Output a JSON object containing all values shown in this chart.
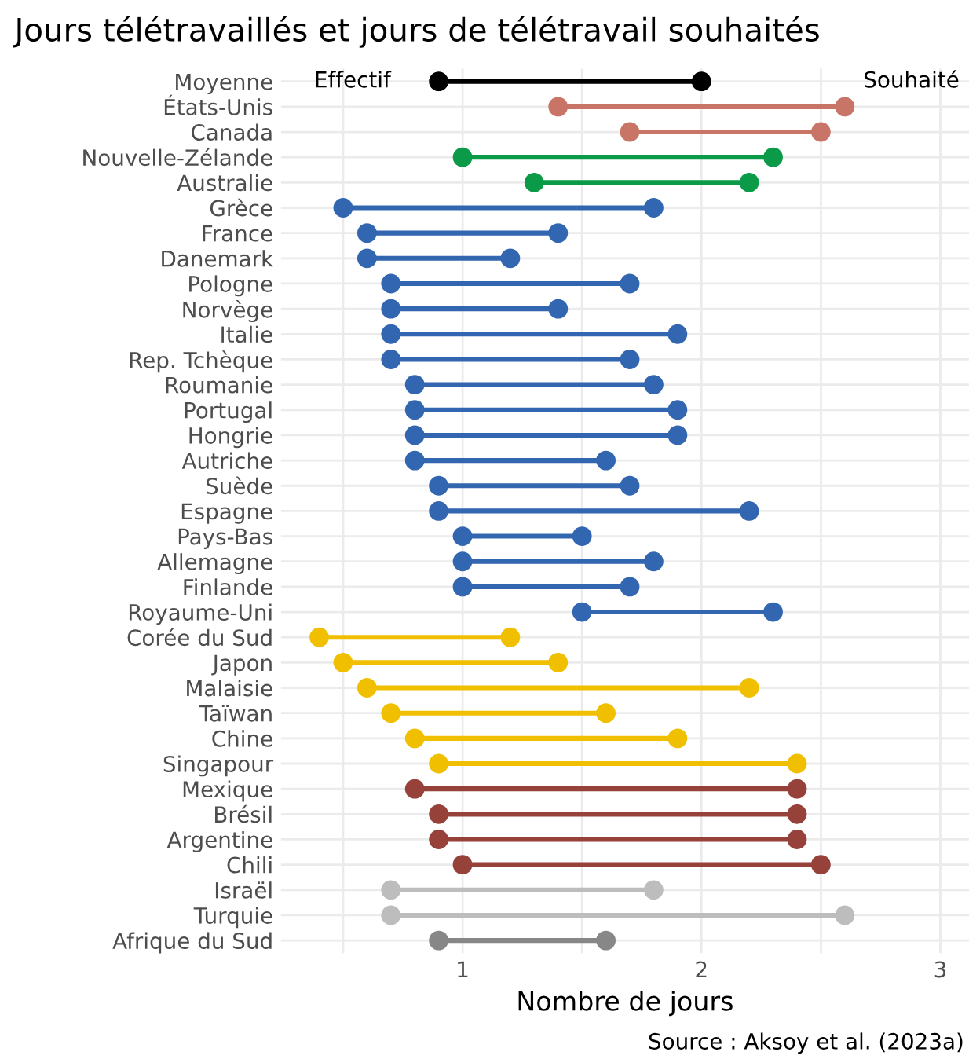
{
  "chart_data": {
    "type": "scatter",
    "title": "Jours télétravaillés et jours de télétravail souhaités",
    "xlabel": "Nombre de jours",
    "categories": [
      "Moyenne",
      "États-Unis",
      "Canada",
      "Nouvelle-Zélande",
      "Australie",
      "Grèce",
      "France",
      "Danemark",
      "Pologne",
      "Norvège",
      "Italie",
      "Rep. Tchèque",
      "Roumanie",
      "Portugal",
      "Hongrie",
      "Autriche",
      "Suède",
      "Espagne",
      "Pays-Bas",
      "Allemagne",
      "Finlande",
      "Royaume-Uni",
      "Corée du Sud",
      "Japon",
      "Malaisie",
      "Taïwan",
      "Chine",
      "Singapour",
      "Mexique",
      "Brésil",
      "Argentine",
      "Chili",
      "Israël",
      "Turquie",
      "Afrique du Sud"
    ],
    "series": [
      {
        "name": "Effectif",
        "values": [
          0.9,
          1.4,
          1.7,
          1.0,
          1.3,
          0.5,
          0.6,
          0.6,
          0.7,
          0.7,
          0.7,
          0.7,
          0.8,
          0.8,
          0.8,
          0.8,
          0.9,
          0.9,
          1.0,
          1.0,
          1.0,
          1.5,
          0.4,
          0.5,
          0.6,
          0.7,
          0.8,
          0.9,
          0.8,
          0.9,
          0.9,
          1.0,
          0.7,
          0.7,
          0.9
        ],
        "colors": [
          "#000000",
          "#c87467",
          "#c87467",
          "#0a9a48",
          "#0a9a48",
          "#3366b0",
          "#3366b0",
          "#3366b0",
          "#3366b0",
          "#3366b0",
          "#3366b0",
          "#3366b0",
          "#3366b0",
          "#3366b0",
          "#3366b0",
          "#3366b0",
          "#3366b0",
          "#3366b0",
          "#3366b0",
          "#3366b0",
          "#3366b0",
          "#3366b0",
          "#f0c000",
          "#f0c000",
          "#f0c000",
          "#f0c000",
          "#f0c000",
          "#f0c000",
          "#96413a",
          "#96413a",
          "#96413a",
          "#96413a",
          "#bdbdbd",
          "#bdbdbd",
          "#878787"
        ]
      },
      {
        "name": "Souhaité",
        "values": [
          2.0,
          2.6,
          2.5,
          2.3,
          2.2,
          1.8,
          1.4,
          1.2,
          1.7,
          1.4,
          1.9,
          1.7,
          1.8,
          1.9,
          1.9,
          1.6,
          1.7,
          2.2,
          1.5,
          1.8,
          1.7,
          2.3,
          1.2,
          1.4,
          2.2,
          1.6,
          1.9,
          2.4,
          2.4,
          2.4,
          2.4,
          2.5,
          1.8,
          2.6,
          1.6
        ],
        "colors": [
          "#000000",
          "#c87467",
          "#c87467",
          "#0a9a48",
          "#0a9a48",
          "#3366b0",
          "#3366b0",
          "#3366b0",
          "#3366b0",
          "#3366b0",
          "#3366b0",
          "#3366b0",
          "#3366b0",
          "#3366b0",
          "#3366b0",
          "#3366b0",
          "#3366b0",
          "#3366b0",
          "#3366b0",
          "#3366b0",
          "#3366b0",
          "#3366b0",
          "#f0c000",
          "#f0c000",
          "#f0c000",
          "#f0c000",
          "#f0c000",
          "#f0c000",
          "#96413a",
          "#96413a",
          "#96413a",
          "#96413a",
          "#bdbdbd",
          "#bdbdbd",
          "#878787"
        ]
      }
    ],
    "xlim": [
      0.24,
      3.12
    ],
    "xticks": [
      {
        "value": 0.5,
        "label": null
      },
      1,
      {
        "value": 1.5,
        "label": null
      },
      2,
      {
        "value": 2.5,
        "label": null
      },
      3
    ],
    "grid": true,
    "marker": "circle",
    "orientation": "horizontal",
    "annotations": [
      "Source : Aksoy et al. (2023a)"
    ]
  }
}
